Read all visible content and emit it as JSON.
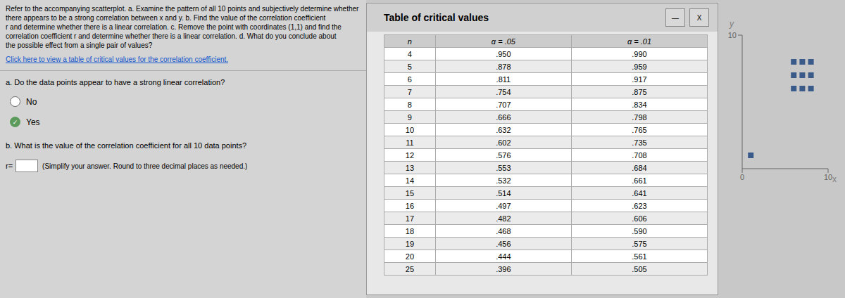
{
  "chart_data": [
    {
      "type": "scatter",
      "x_label": "x",
      "y_label": "y",
      "x": [
        1,
        6,
        6,
        6,
        7,
        7,
        7,
        8,
        8,
        8
      ],
      "values": [
        1,
        6,
        7,
        8,
        6,
        7,
        8,
        6,
        7,
        8
      ],
      "xlim": [
        0,
        10
      ],
      "ylim": [
        0,
        10
      ],
      "xticks": [
        0,
        10
      ],
      "yticks": [
        10
      ],
      "color": "#3a5a8a",
      "marker": "square",
      "grid": false,
      "annotations": [
        "Refer to the accompanying scatterplot. a. Examine the pattern of all 10 points and subjectively determine whether there appears to be a strong correlation between x and y. b. Find the value of the correlation coefficient",
        "r and determine whether there is a linear correlation. c. Remove the point with coordinates (1,1) and find the correlation coefficient r and determine whether there is a linear correlation. d. What do you conclude about",
        "the possible effect from a single pair of values?",
        "Click here to view a table of critical values for the correlation coefficient.",
        "a. Do the data points appear to have a strong linear correlation?",
        "No",
        "✓",
        "Yes",
        "b. What is the value of the correlation coefficient for all 10 data points?",
        "r=",
        "(Simplify your answer. Round to three decimal places as needed.)"
      ]
    },
    {
      "type": "table",
      "title": "Table of critical values",
      "columns": [
        "n",
        "α = .05",
        "α = .01"
      ],
      "rows": [
        [
          4,
          ".950",
          ".990"
        ],
        [
          5,
          ".878",
          ".959"
        ],
        [
          6,
          ".811",
          ".917"
        ],
        [
          7,
          ".754",
          ".875"
        ],
        [
          8,
          ".707",
          ".834"
        ],
        [
          9,
          ".666",
          ".798"
        ],
        [
          10,
          ".632",
          ".765"
        ],
        [
          11,
          ".602",
          ".735"
        ],
        [
          12,
          ".576",
          ".708"
        ],
        [
          13,
          ".553",
          ".684"
        ],
        [
          14,
          ".532",
          ".661"
        ],
        [
          15,
          ".514",
          ".641"
        ],
        [
          16,
          ".497",
          ".623"
        ],
        [
          17,
          ".482",
          ".606"
        ],
        [
          18,
          ".468",
          ".590"
        ],
        [
          19,
          ".456",
          ".575"
        ],
        [
          20,
          ".444",
          ".561"
        ],
        [
          25,
          ".396",
          ".505"
        ]
      ],
      "annotations": [
        "—",
        "X"
      ]
    }
  ]
}
